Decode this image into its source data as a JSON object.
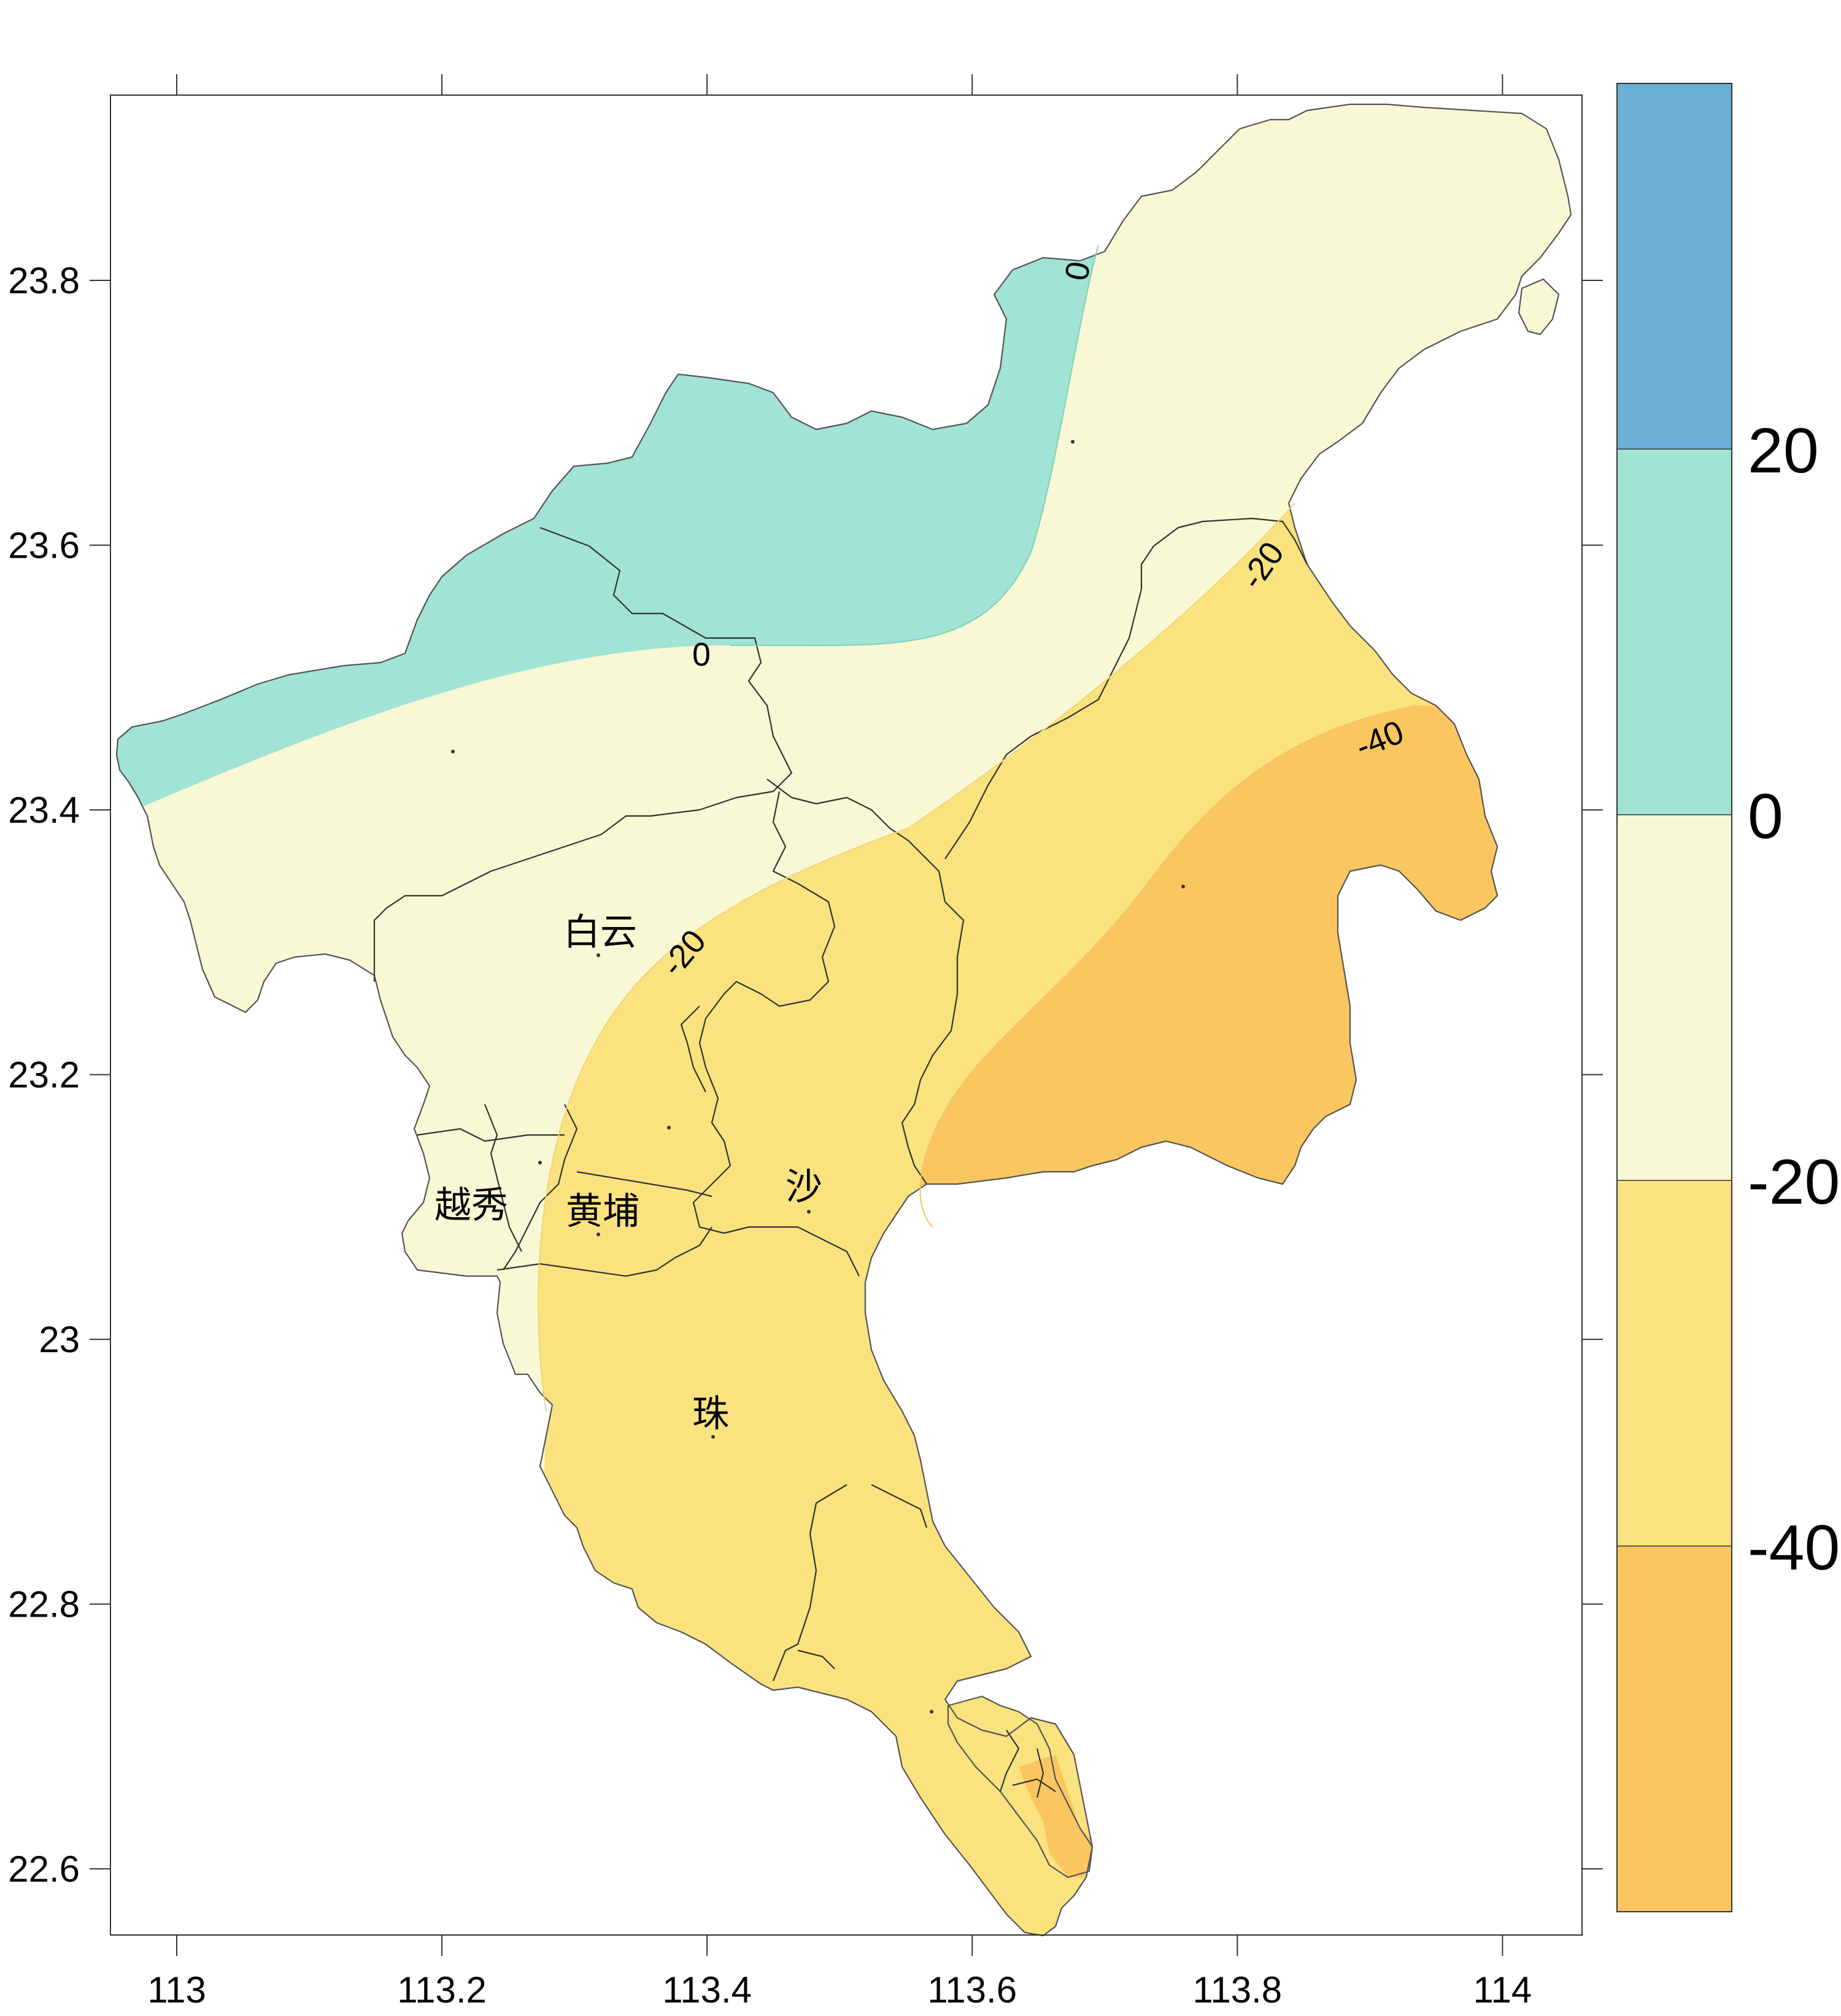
{
  "map": {
    "x_ticks": [
      "113",
      "113.2",
      "113.4",
      "113.6",
      "113.8",
      "114"
    ],
    "y_ticks": [
      "23.8",
      "23.6",
      "23.4",
      "23.2",
      "23",
      "22.8",
      "22.6"
    ],
    "xlim": [
      112.95,
      114.06
    ],
    "ylim": [
      22.55,
      23.94
    ],
    "districts": [
      {
        "id": "baiyun",
        "text": "白云"
      },
      {
        "id": "yuexiu",
        "text": "越秀"
      },
      {
        "id": "huangpu",
        "text": "黄埔"
      },
      {
        "id": "sha",
        "text": "沙"
      },
      {
        "id": "zhu",
        "text": "珠"
      }
    ],
    "contour_labels": [
      {
        "id": "c0-top",
        "text": "0"
      },
      {
        "id": "c0-mid",
        "text": "0"
      },
      {
        "id": "cm20-ne",
        "text": "-20"
      },
      {
        "id": "cm20-mid",
        "text": "-20"
      },
      {
        "id": "cm40",
        "text": "-40"
      }
    ],
    "colors": {
      "band_above_20": "#6baed6",
      "band_0_20": "#a1e3d5",
      "band_m20_0": "#f8f8d5",
      "band_m40_m20": "#fae27e",
      "band_below_m40": "#f9c660",
      "frame": "#333333",
      "boundary": "#555555"
    }
  },
  "colorbar": {
    "levels": [
      "20",
      "0",
      "-20",
      "-40"
    ],
    "bands": [
      {
        "range": "> 20",
        "color": "#6baed6"
      },
      {
        "range": "0 to 20",
        "color": "#a1e3d5"
      },
      {
        "range": "-20 to 0",
        "color": "#f8f8d5"
      },
      {
        "range": "-40 to -20",
        "color": "#fae27e"
      },
      {
        "range": "< -40",
        "color": "#f9c660"
      }
    ]
  }
}
